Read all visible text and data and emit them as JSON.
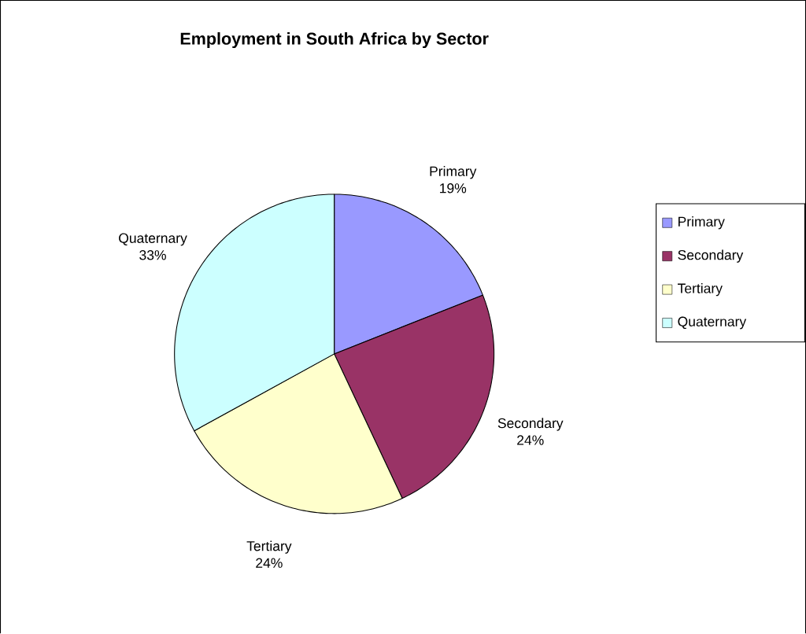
{
  "chart_data": {
    "type": "pie",
    "title": "Employment in South Africa by Sector",
    "categories": [
      "Primary",
      "Secondary",
      "Tertiary",
      "Quaternary"
    ],
    "values": [
      19,
      24,
      24,
      33
    ],
    "colors": [
      "#9999ff",
      "#993366",
      "#ffffcc",
      "#ccffff"
    ],
    "value_labels": [
      "19%",
      "24%",
      "24%",
      "33%"
    ],
    "legend": "right"
  }
}
